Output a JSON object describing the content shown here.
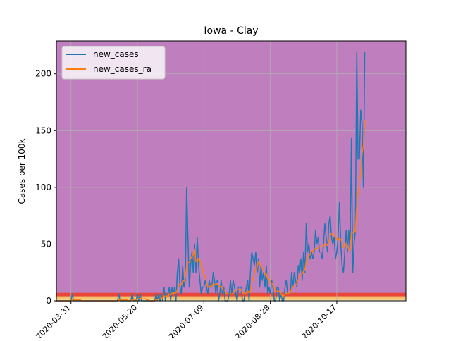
{
  "chart_data": {
    "type": "line",
    "title": "Iowa - Clay",
    "xlabel": "",
    "ylabel": "Cases per 100k",
    "x_start": "2020-03-20",
    "x_end": "2020-11-08",
    "xlim": [
      "2020-03-20",
      "2020-12-08"
    ],
    "ylim": [
      0,
      229
    ],
    "x_ticks": [
      "2020-03-31",
      "2020-05-20",
      "2020-07-09",
      "2020-08-28",
      "2020-10-17"
    ],
    "y_ticks": [
      0,
      50,
      100,
      150,
      200
    ],
    "grid": true,
    "legend_position": "upper-left",
    "background_color": "#bf7fbf",
    "risk_bands": [
      {
        "from": 0,
        "to": 1,
        "color": "#ffffb2"
      },
      {
        "from": 1,
        "to": 4,
        "color": "#fecc5c"
      },
      {
        "from": 4,
        "to": 7,
        "color": "#f03b20"
      }
    ],
    "series": [
      {
        "name": "new_cases",
        "color": "#1f77b4",
        "values": [
          0,
          0,
          0,
          0,
          0,
          0,
          0,
          0,
          0,
          0,
          0,
          0,
          6,
          0,
          0,
          0,
          0,
          0,
          0,
          0,
          0,
          0,
          0,
          0,
          0,
          0,
          0,
          0,
          0,
          0,
          0,
          0,
          0,
          0,
          0,
          0,
          0,
          0,
          0,
          0,
          0,
          0,
          0,
          0,
          0,
          0,
          0,
          6,
          0,
          0,
          0,
          0,
          0,
          0,
          0,
          0,
          0,
          6,
          0,
          0,
          0,
          6,
          0,
          6,
          0,
          0,
          0,
          0,
          0,
          0,
          0,
          0,
          0,
          0,
          0,
          6,
          0,
          6,
          0,
          6,
          0,
          12,
          0,
          6,
          6,
          12,
          0,
          12,
          6,
          12,
          0,
          25,
          37,
          12,
          6,
          31,
          12,
          18,
          100,
          56,
          12,
          31,
          43,
          25,
          50,
          25,
          56,
          31,
          18,
          6,
          12,
          12,
          18,
          12,
          6,
          18,
          12,
          12,
          25,
          18,
          6,
          18,
          0,
          6,
          18,
          6,
          12,
          0,
          0,
          0,
          6,
          18,
          6,
          18,
          12,
          6,
          0,
          12,
          12,
          12,
          0,
          0,
          6,
          12,
          18,
          0,
          25,
          43,
          37,
          31,
          43,
          25,
          37,
          12,
          31,
          18,
          25,
          12,
          31,
          6,
          12,
          6,
          18,
          12,
          0,
          0,
          12,
          12,
          0,
          6,
          0,
          0,
          12,
          18,
          6,
          6,
          6,
          25,
          12,
          25,
          18,
          12,
          31,
          25,
          37,
          18,
          43,
          25,
          68,
          43,
          50,
          37,
          43,
          37,
          43,
          62,
          50,
          56,
          43,
          43,
          37,
          50,
          68,
          56,
          43,
          68,
          75,
          56,
          50,
          56,
          37,
          43,
          56,
          87,
          50,
          31,
          25,
          43,
          62,
          43,
          62,
          43,
          143,
          25,
          50,
          62,
          219,
          125,
          125,
          168,
          156,
          100,
          219
        ],
        "values_count": 234
      },
      {
        "name": "new_cases_ra",
        "color": "#ff7f0e",
        "values_description": "7-day running average of new_cases"
      }
    ]
  }
}
